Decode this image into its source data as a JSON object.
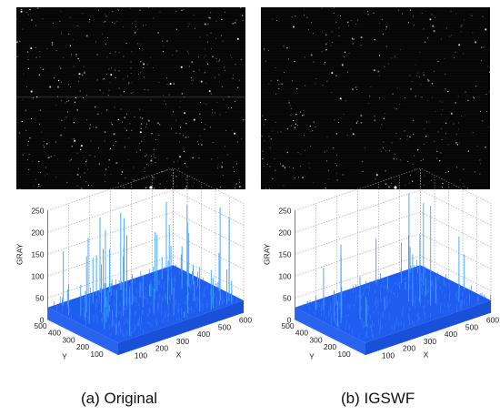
{
  "panels": [
    {
      "id": "a",
      "caption": "(a) Original",
      "plot": {
        "z_ticks": [
          "0",
          "50",
          "100",
          "150",
          "200",
          "250"
        ],
        "y_ticks": [
          "100",
          "200",
          "300",
          "400",
          "500"
        ],
        "x_ticks": [
          "100",
          "200",
          "300",
          "400",
          "500",
          "600"
        ],
        "z_label": "GRAY",
        "y_label": "Y",
        "x_label": "X"
      }
    },
    {
      "id": "b",
      "caption": "(b) IGSWF",
      "plot": {
        "z_ticks": [
          "0",
          "50",
          "100",
          "150",
          "200",
          "250"
        ],
        "y_ticks": [
          "100",
          "200",
          "300",
          "400",
          "500"
        ],
        "x_ticks": [
          "100",
          "200",
          "300",
          "400",
          "500",
          "600"
        ],
        "z_label": "GRAY",
        "y_label": "Y",
        "x_label": "X"
      }
    }
  ],
  "colors": {
    "image_background": "#060606",
    "surface": "#1f5cf0",
    "spike": "#3aa0ff",
    "grid": "#9a9a9a"
  }
}
